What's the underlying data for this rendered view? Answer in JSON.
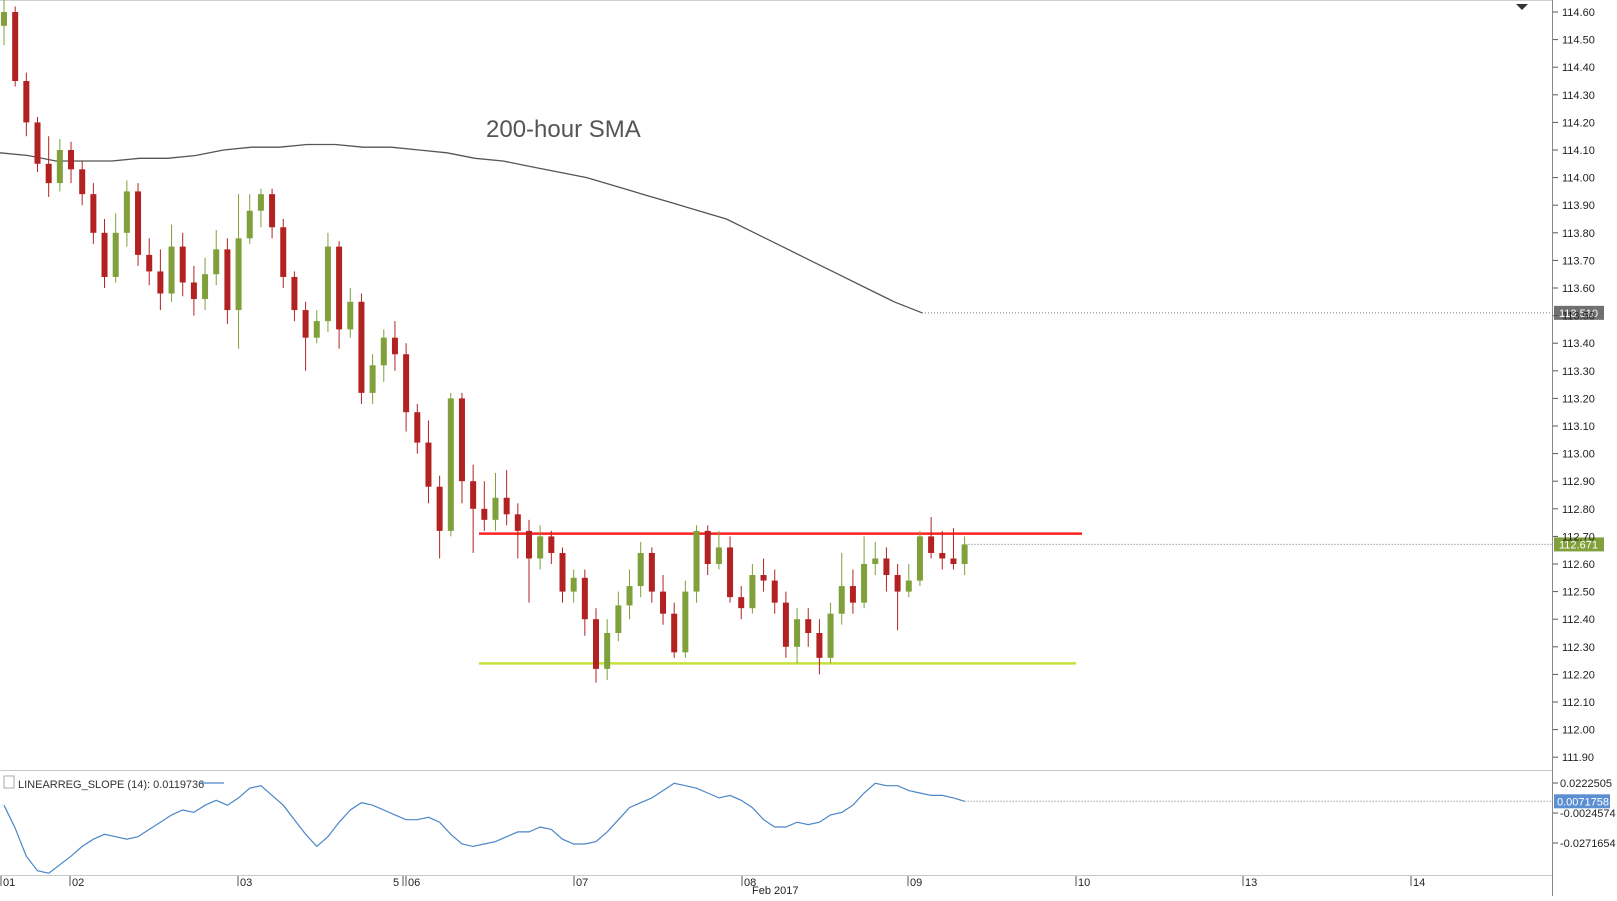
{
  "chart_data": [
    {
      "type": "candlestick",
      "title": "",
      "annotations": [
        {
          "text": "200-hour SMA",
          "kind": "label"
        }
      ],
      "ylim": [
        111.86,
        114.62
      ],
      "y_ticks": [
        "114.60",
        "114.50",
        "114.40",
        "114.30",
        "114.20",
        "114.10",
        "114.00",
        "113.90",
        "113.80",
        "113.70",
        "113.60",
        "113.50",
        "113.40",
        "113.30",
        "113.20",
        "113.10",
        "113.00",
        "112.90",
        "112.80",
        "112.70",
        "112.60",
        "112.50",
        "112.40",
        "112.30",
        "112.20",
        "112.10",
        "112.00",
        "111.90"
      ],
      "last_price_label": "112.671",
      "sma_last_label": "113.510",
      "sma_last_value": 113.51,
      "last_price_value": 112.671,
      "resistance_level": 112.71,
      "support_level": 112.24,
      "sma_200": [
        114.09,
        114.08,
        114.06,
        114.06,
        114.06,
        114.07,
        114.07,
        114.08,
        114.1,
        114.11,
        114.11,
        114.12,
        114.12,
        114.11,
        114.11,
        114.1,
        114.09,
        114.07,
        114.06,
        114.04,
        114.02,
        114.0,
        113.97,
        113.94,
        113.91,
        113.88,
        113.85,
        113.8,
        113.75,
        113.7,
        113.65,
        113.6,
        113.55,
        113.51
      ],
      "candles": [
        [
          114.55,
          114.6,
          114.68,
          114.48
        ],
        [
          114.6,
          114.35,
          114.62,
          114.33
        ],
        [
          114.35,
          114.2,
          114.38,
          114.15
        ],
        [
          114.2,
          114.05,
          114.22,
          114.02
        ],
        [
          114.05,
          113.98,
          114.15,
          113.93
        ],
        [
          113.98,
          114.1,
          114.14,
          113.95
        ],
        [
          114.1,
          114.03,
          114.13,
          113.98
        ],
        [
          114.03,
          113.94,
          114.06,
          113.9
        ],
        [
          113.94,
          113.8,
          113.98,
          113.76
        ],
        [
          113.8,
          113.64,
          113.85,
          113.6
        ],
        [
          113.64,
          113.8,
          113.87,
          113.62
        ],
        [
          113.8,
          113.95,
          113.99,
          113.75
        ],
        [
          113.95,
          113.72,
          113.98,
          113.68
        ],
        [
          113.72,
          113.66,
          113.78,
          113.61
        ],
        [
          113.66,
          113.58,
          113.74,
          113.52
        ],
        [
          113.58,
          113.75,
          113.83,
          113.55
        ],
        [
          113.75,
          113.62,
          113.8,
          113.57
        ],
        [
          113.62,
          113.56,
          113.68,
          113.5
        ],
        [
          113.56,
          113.65,
          113.71,
          113.52
        ],
        [
          113.65,
          113.74,
          113.81,
          113.61
        ],
        [
          113.74,
          113.52,
          113.78,
          113.47
        ],
        [
          113.52,
          113.78,
          113.94,
          113.38
        ],
        [
          113.78,
          113.88,
          113.94,
          113.76
        ],
        [
          113.88,
          113.94,
          113.96,
          113.82
        ],
        [
          113.94,
          113.82,
          113.96,
          113.78
        ],
        [
          113.82,
          113.64,
          113.85,
          113.6
        ],
        [
          113.64,
          113.52,
          113.66,
          113.48
        ],
        [
          113.52,
          113.42,
          113.55,
          113.3
        ],
        [
          113.42,
          113.48,
          113.52,
          113.4
        ],
        [
          113.48,
          113.75,
          113.8,
          113.44
        ],
        [
          113.75,
          113.45,
          113.77,
          113.38
        ],
        [
          113.45,
          113.55,
          113.6,
          113.42
        ],
        [
          113.55,
          113.22,
          113.58,
          113.18
        ],
        [
          113.22,
          113.32,
          113.36,
          113.18
        ],
        [
          113.32,
          113.42,
          113.45,
          113.26
        ],
        [
          113.42,
          113.36,
          113.48,
          113.3
        ],
        [
          113.36,
          113.15,
          113.4,
          113.08
        ],
        [
          113.15,
          113.04,
          113.18,
          113.0
        ],
        [
          113.04,
          112.88,
          113.12,
          112.82
        ],
        [
          112.88,
          112.72,
          112.92,
          112.62
        ],
        [
          112.72,
          113.2,
          113.22,
          112.7
        ],
        [
          113.2,
          112.9,
          113.22,
          112.82
        ],
        [
          112.9,
          112.8,
          112.96,
          112.64
        ],
        [
          112.8,
          112.76,
          112.9,
          112.72
        ],
        [
          112.76,
          112.84,
          112.93,
          112.72
        ],
        [
          112.84,
          112.78,
          112.94,
          112.74
        ],
        [
          112.78,
          112.72,
          112.82,
          112.62
        ],
        [
          112.72,
          112.62,
          112.76,
          112.46
        ],
        [
          112.62,
          112.7,
          112.74,
          112.58
        ],
        [
          112.7,
          112.64,
          112.72,
          112.6
        ],
        [
          112.64,
          112.5,
          112.66,
          112.46
        ],
        [
          112.5,
          112.55,
          112.58,
          112.46
        ],
        [
          112.55,
          112.4,
          112.58,
          112.34
        ],
        [
          112.4,
          112.22,
          112.44,
          112.17
        ],
        [
          112.22,
          112.35,
          112.4,
          112.18
        ],
        [
          112.35,
          112.45,
          112.5,
          112.32
        ],
        [
          112.45,
          112.52,
          112.58,
          112.4
        ],
        [
          112.52,
          112.64,
          112.68,
          112.48
        ],
        [
          112.64,
          112.5,
          112.66,
          112.46
        ],
        [
          112.5,
          112.42,
          112.56,
          112.38
        ],
        [
          112.42,
          112.28,
          112.46,
          112.26
        ],
        [
          112.28,
          112.5,
          112.54,
          112.26
        ],
        [
          112.5,
          112.72,
          112.74,
          112.46
        ],
        [
          112.72,
          112.6,
          112.74,
          112.56
        ],
        [
          112.6,
          112.66,
          112.72,
          112.58
        ],
        [
          112.66,
          112.48,
          112.7,
          112.46
        ],
        [
          112.48,
          112.44,
          112.52,
          112.4
        ],
        [
          112.44,
          112.56,
          112.6,
          112.42
        ],
        [
          112.56,
          112.54,
          112.62,
          112.5
        ],
        [
          112.54,
          112.46,
          112.58,
          112.42
        ],
        [
          112.46,
          112.3,
          112.5,
          112.26
        ],
        [
          112.3,
          112.4,
          112.44,
          112.24
        ],
        [
          112.4,
          112.35,
          112.44,
          112.3
        ],
        [
          112.35,
          112.26,
          112.4,
          112.2
        ],
        [
          112.26,
          112.42,
          112.46,
          112.24
        ],
        [
          112.42,
          112.52,
          112.64,
          112.38
        ],
        [
          112.52,
          112.46,
          112.58,
          112.42
        ],
        [
          112.46,
          112.6,
          112.7,
          112.44
        ],
        [
          112.6,
          112.62,
          112.68,
          112.56
        ],
        [
          112.62,
          112.56,
          112.66,
          112.5
        ],
        [
          112.56,
          112.5,
          112.6,
          112.36
        ],
        [
          112.5,
          112.54,
          112.6,
          112.48
        ],
        [
          112.54,
          112.7,
          112.72,
          112.52
        ],
        [
          112.7,
          112.64,
          112.77,
          112.62
        ],
        [
          112.64,
          112.62,
          112.72,
          112.58
        ],
        [
          112.62,
          112.6,
          112.73,
          112.58
        ],
        [
          112.6,
          112.671,
          112.7,
          112.56
        ]
      ]
    },
    {
      "type": "line",
      "title": "",
      "indicator_label": "LINEARREG_SLOPE (14): 0.0119736",
      "y_ticks": [
        "0.0222505",
        "-0.0024574",
        "-0.0271654"
      ],
      "last_value_label": "0.0071758",
      "last_value": 0.0071758,
      "ylim": [
        -0.04,
        0.026
      ],
      "series": [
        {
          "values": [
            0.004,
            -0.015,
            -0.038,
            -0.05,
            -0.052,
            -0.045,
            -0.038,
            -0.03,
            -0.024,
            -0.02,
            -0.022,
            -0.024,
            -0.022,
            -0.016,
            -0.01,
            -0.004,
            0.0,
            -0.002,
            0.004,
            0.008,
            0.004,
            0.01,
            0.018,
            0.02,
            0.012,
            0.004,
            -0.008,
            -0.02,
            -0.03,
            -0.022,
            -0.01,
            0.0,
            0.006,
            0.004,
            0.0,
            -0.004,
            -0.008,
            -0.008,
            -0.006,
            -0.01,
            -0.02,
            -0.028,
            -0.03,
            -0.028,
            -0.026,
            -0.022,
            -0.018,
            -0.018,
            -0.014,
            -0.016,
            -0.024,
            -0.028,
            -0.028,
            -0.026,
            -0.018,
            -0.008,
            0.002,
            0.006,
            0.01,
            0.016,
            0.022,
            0.02,
            0.018,
            0.014,
            0.01,
            0.012,
            0.008,
            0.002,
            -0.008,
            -0.014,
            -0.014,
            -0.01,
            -0.012,
            -0.01,
            -0.004,
            -0.002,
            0.004,
            0.014,
            0.022,
            0.02,
            0.02,
            0.016,
            0.014,
            0.012,
            0.012,
            0.01,
            0.0072
          ]
        }
      ]
    }
  ],
  "x_axis": {
    "day_labels": [
      "01",
      "02",
      "03",
      "5",
      "06",
      "07",
      "08",
      "09",
      "10",
      "13",
      "14"
    ],
    "month_label": "Feb 2017"
  },
  "colors": {
    "bull": "#7fa03a",
    "bear": "#b22222",
    "sma": "#555555",
    "resistance": "#ff2020",
    "support": "#c8e03c",
    "indicator_line": "#4a86c8",
    "price_tag_bg": "#7fa03a",
    "sma_tag_bg": "#707070",
    "indicator_tag_bg": "#5b8fd1"
  }
}
